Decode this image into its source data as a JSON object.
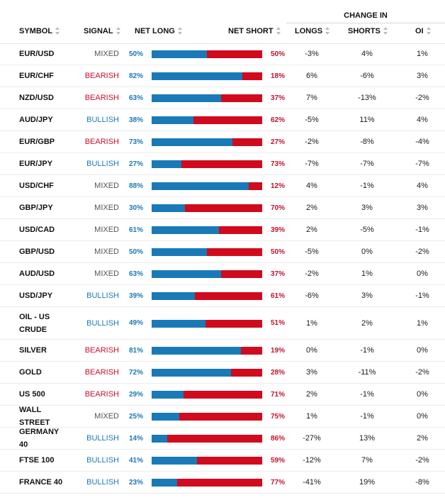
{
  "header": {
    "group_label": "CHANGE IN",
    "columns": {
      "symbol": "SYMBOL",
      "signal": "SIGNAL",
      "net_long": "NET LONG",
      "net_short": "NET SHORT",
      "longs": "LONGS",
      "shorts": "SHORTS",
      "oi": "OI"
    }
  },
  "colors": {
    "long": "#1a7ab8",
    "short": "#d10a1e",
    "mixed": "#555555"
  },
  "rows": [
    {
      "symbol": "EUR/USD",
      "signal": "MIXED",
      "net_long": "50%",
      "net_short": "50%",
      "long_fraction": 0.5,
      "longs": "-3%",
      "shorts": "4%",
      "oi": "1%"
    },
    {
      "symbol": "EUR/CHF",
      "signal": "BEARISH",
      "net_long": "82%",
      "net_short": "18%",
      "long_fraction": 0.82,
      "longs": "6%",
      "shorts": "-6%",
      "oi": "3%"
    },
    {
      "symbol": "NZD/USD",
      "signal": "BEARISH",
      "net_long": "63%",
      "net_short": "37%",
      "long_fraction": 0.63,
      "longs": "7%",
      "shorts": "-13%",
      "oi": "-2%"
    },
    {
      "symbol": "AUD/JPY",
      "signal": "BULLISH",
      "net_long": "38%",
      "net_short": "62%",
      "long_fraction": 0.38,
      "longs": "-5%",
      "shorts": "11%",
      "oi": "4%"
    },
    {
      "symbol": "EUR/GBP",
      "signal": "BEARISH",
      "net_long": "73%",
      "net_short": "27%",
      "long_fraction": 0.73,
      "longs": "-2%",
      "shorts": "-8%",
      "oi": "-4%"
    },
    {
      "symbol": "EUR/JPY",
      "signal": "BULLISH",
      "net_long": "27%",
      "net_short": "73%",
      "long_fraction": 0.27,
      "longs": "-7%",
      "shorts": "-7%",
      "oi": "-7%"
    },
    {
      "symbol": "USD/CHF",
      "signal": "MIXED",
      "net_long": "88%",
      "net_short": "12%",
      "long_fraction": 0.88,
      "longs": "4%",
      "shorts": "-1%",
      "oi": "4%"
    },
    {
      "symbol": "GBP/JPY",
      "signal": "MIXED",
      "net_long": "30%",
      "net_short": "70%",
      "long_fraction": 0.3,
      "longs": "2%",
      "shorts": "3%",
      "oi": "3%"
    },
    {
      "symbol": "USD/CAD",
      "signal": "MIXED",
      "net_long": "61%",
      "net_short": "39%",
      "long_fraction": 0.61,
      "longs": "2%",
      "shorts": "-5%",
      "oi": "-1%"
    },
    {
      "symbol": "GBP/USD",
      "signal": "MIXED",
      "net_long": "50%",
      "net_short": "50%",
      "long_fraction": 0.5,
      "longs": "-5%",
      "shorts": "0%",
      "oi": "-2%"
    },
    {
      "symbol": "AUD/USD",
      "signal": "MIXED",
      "net_long": "63%",
      "net_short": "37%",
      "long_fraction": 0.63,
      "longs": "-2%",
      "shorts": "1%",
      "oi": "0%"
    },
    {
      "symbol": "USD/JPY",
      "signal": "BULLISH",
      "net_long": "39%",
      "net_short": "61%",
      "long_fraction": 0.39,
      "longs": "-6%",
      "shorts": "3%",
      "oi": "-1%"
    },
    {
      "symbol": "OIL - US CRUDE",
      "signal": "BULLISH",
      "net_long": "49%",
      "net_short": "51%",
      "long_fraction": 0.49,
      "longs": "1%",
      "shorts": "2%",
      "oi": "1%",
      "tall": true
    },
    {
      "symbol": "SILVER",
      "signal": "BEARISH",
      "net_long": "81%",
      "net_short": "19%",
      "long_fraction": 0.81,
      "longs": "0%",
      "shorts": "-1%",
      "oi": "0%"
    },
    {
      "symbol": "GOLD",
      "signal": "BEARISH",
      "net_long": "72%",
      "net_short": "28%",
      "long_fraction": 0.72,
      "longs": "3%",
      "shorts": "-11%",
      "oi": "-2%"
    },
    {
      "symbol": "US 500",
      "signal": "BEARISH",
      "net_long": "29%",
      "net_short": "71%",
      "long_fraction": 0.29,
      "longs": "2%",
      "shorts": "-1%",
      "oi": "0%"
    },
    {
      "symbol": "WALL STREET",
      "signal": "MIXED",
      "net_long": "25%",
      "net_short": "75%",
      "long_fraction": 0.25,
      "longs": "1%",
      "shorts": "-1%",
      "oi": "0%"
    },
    {
      "symbol": "GERMANY 40",
      "signal": "BULLISH",
      "net_long": "14%",
      "net_short": "86%",
      "long_fraction": 0.14,
      "longs": "-27%",
      "shorts": "13%",
      "oi": "2%"
    },
    {
      "symbol": "FTSE 100",
      "signal": "BULLISH",
      "net_long": "41%",
      "net_short": "59%",
      "long_fraction": 0.41,
      "longs": "-12%",
      "shorts": "7%",
      "oi": "-2%"
    },
    {
      "symbol": "FRANCE 40",
      "signal": "BULLISH",
      "net_long": "23%",
      "net_short": "77%",
      "long_fraction": 0.23,
      "longs": "-41%",
      "shorts": "19%",
      "oi": "-8%"
    }
  ]
}
